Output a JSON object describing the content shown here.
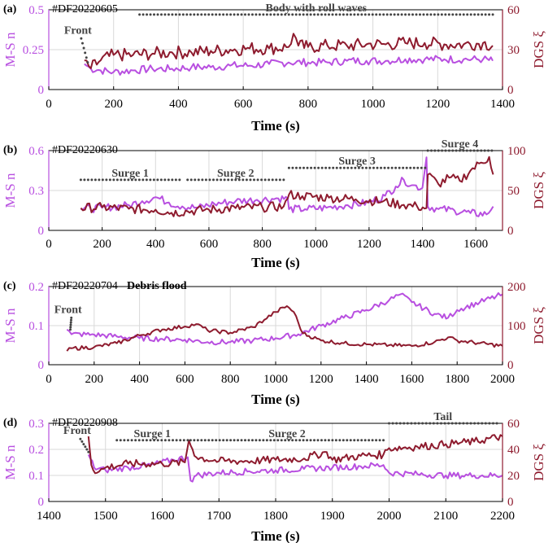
{
  "colors": {
    "msn": "#b84fe0",
    "dgs": "#8e1b2e",
    "dots": "#444444"
  },
  "chart_data": [
    {
      "type": "line",
      "panel": "(a)",
      "event_id": "#DF20220605",
      "xlabel": "Time (s)",
      "ylabel_left": "M-S n",
      "ylabel_right": "DGS ξ",
      "xlim": [
        0,
        1400
      ],
      "xticks": [
        0,
        200,
        400,
        600,
        800,
        1000,
        1200,
        1400
      ],
      "ylim_left": [
        0,
        0.5
      ],
      "yticks_left": [
        "0",
        "0.25",
        "0.5"
      ],
      "yticks_left_values": [
        0,
        0.25,
        0.5
      ],
      "ylim_right": [
        0,
        60
      ],
      "yticks_right": [
        "0",
        "30",
        "60"
      ],
      "yticks_right_values": [
        0,
        30,
        60
      ],
      "annotations": [
        {
          "text": "Front",
          "at": [
            90,
            0.32
          ],
          "arrow_to": [
            120,
            0.17
          ]
        },
        {
          "text": "Body with roll waves",
          "x_from": 280,
          "x_to": 1370,
          "y": 0.47
        }
      ],
      "series": [
        {
          "name": "M-S n",
          "axis": "left",
          "x": [
            110,
            130,
            160,
            200,
            260,
            320,
            380,
            440,
            500,
            560,
            620,
            680,
            740,
            800,
            860,
            920,
            980,
            1040,
            1100,
            1160,
            1220,
            1280,
            1340,
            1370
          ],
          "values": [
            0.16,
            0.13,
            0.12,
            0.11,
            0.12,
            0.13,
            0.13,
            0.14,
            0.14,
            0.15,
            0.15,
            0.16,
            0.17,
            0.17,
            0.17,
            0.18,
            0.18,
            0.18,
            0.19,
            0.19,
            0.19,
            0.19,
            0.19,
            0.18
          ],
          "jitter": 0.025
        },
        {
          "name": "DGS ξ",
          "axis": "right",
          "x": [
            110,
            130,
            160,
            200,
            260,
            320,
            380,
            440,
            500,
            560,
            620,
            680,
            740,
            755,
            770,
            800,
            860,
            920,
            980,
            1040,
            1100,
            1160,
            1220,
            1280,
            1340,
            1370
          ],
          "values": [
            22,
            16,
            22,
            26,
            26,
            27,
            28,
            28,
            29,
            30,
            31,
            31,
            32,
            42,
            33,
            32,
            33,
            33,
            34,
            34,
            35,
            35,
            34,
            34,
            35,
            33
          ],
          "jitter": 5
        }
      ]
    },
    {
      "type": "line",
      "panel": "(b)",
      "event_id": "#DF20220630",
      "xlabel": "Time (s)",
      "ylabel_left": "M-S n",
      "ylabel_right": "DGS ξ",
      "xlim": [
        0,
        1700
      ],
      "xticks": [
        0,
        200,
        400,
        600,
        800,
        1000,
        1200,
        1400,
        1600
      ],
      "ylim_left": [
        0,
        0.6
      ],
      "yticks_left": [
        "0",
        "0.3",
        "0.6"
      ],
      "yticks_left_values": [
        0,
        0.3,
        0.6
      ],
      "ylim_right": [
        0,
        100
      ],
      "yticks_right": [
        "0",
        "50",
        "100"
      ],
      "yticks_right_values": [
        0,
        50,
        100
      ],
      "annotations": [
        {
          "text": "Surge 1",
          "x_from": 120,
          "x_to": 490,
          "y": 0.38
        },
        {
          "text": "Surge 2",
          "x_from": 520,
          "x_to": 880,
          "y": 0.38
        },
        {
          "text": "Surge 3",
          "x_from": 900,
          "x_to": 1410,
          "y": 0.47
        },
        {
          "text": "Surge 4",
          "x_from": 1420,
          "x_to": 1660,
          "y": 0.6
        }
      ],
      "series": [
        {
          "name": "M-S n",
          "axis": "left",
          "x": [
            120,
            200,
            300,
            350,
            400,
            450,
            500,
            560,
            620,
            700,
            780,
            860,
            895,
            900,
            960,
            1040,
            1120,
            1200,
            1260,
            1300,
            1330,
            1360,
            1400,
            1415,
            1420,
            1460,
            1520,
            1580,
            1640,
            1665
          ],
          "values": [
            0.16,
            0.17,
            0.19,
            0.22,
            0.25,
            0.21,
            0.18,
            0.17,
            0.2,
            0.22,
            0.23,
            0.24,
            0.24,
            0.16,
            0.16,
            0.17,
            0.19,
            0.21,
            0.26,
            0.33,
            0.38,
            0.34,
            0.32,
            0.55,
            0.18,
            0.16,
            0.15,
            0.13,
            0.12,
            0.18
          ],
          "jitter": 0.03
        },
        {
          "name": "DGS ξ",
          "axis": "right",
          "x": [
            120,
            200,
            300,
            400,
            460,
            520,
            600,
            700,
            800,
            880,
            895,
            900,
            950,
            1050,
            1150,
            1250,
            1330,
            1380,
            1415,
            1420,
            1460,
            1500,
            1540,
            1580,
            1620,
            1650,
            1665
          ],
          "values": [
            28,
            29,
            27,
            26,
            22,
            24,
            26,
            28,
            29,
            30,
            40,
            45,
            43,
            41,
            39,
            36,
            32,
            30,
            28,
            70,
            58,
            66,
            62,
            75,
            85,
            92,
            70
          ],
          "jitter": 6
        }
      ]
    },
    {
      "type": "line",
      "panel": "(c)",
      "event_id": "#DF20220704",
      "title": "Debris flood",
      "xlabel": "Time (s)",
      "ylabel_left": "M-S n",
      "ylabel_right": "DGS ξ",
      "xlim": [
        0,
        2000
      ],
      "xticks": [
        0,
        200,
        400,
        600,
        800,
        1000,
        1200,
        1400,
        1600,
        1800,
        2000
      ],
      "ylim_left": [
        0,
        0.2
      ],
      "yticks_left": [
        "0",
        "0.1",
        "0.2"
      ],
      "yticks_left_values": [
        0,
        0.1,
        0.2
      ],
      "ylim_right": [
        0,
        200
      ],
      "yticks_right": [
        "0",
        "100",
        "200"
      ],
      "yticks_right_values": [
        0,
        100,
        200
      ],
      "annotations": [
        {
          "text": "Front",
          "at": [
            85,
            0.12
          ],
          "arrow_to": [
            95,
            0.09
          ]
        }
      ],
      "series": [
        {
          "name": "M-S n",
          "axis": "left",
          "x": [
            80,
            100,
            200,
            300,
            400,
            500,
            600,
            700,
            800,
            900,
            1000,
            1100,
            1200,
            1300,
            1400,
            1500,
            1550,
            1600,
            1700,
            1760,
            1800,
            1900,
            2000
          ],
          "values": [
            0.09,
            0.078,
            0.077,
            0.072,
            0.068,
            0.066,
            0.064,
            0.058,
            0.058,
            0.062,
            0.068,
            0.078,
            0.1,
            0.12,
            0.14,
            0.165,
            0.18,
            0.16,
            0.13,
            0.12,
            0.14,
            0.16,
            0.18
          ],
          "jitter": 0.007
        },
        {
          "name": "DGS ξ",
          "axis": "right",
          "x": [
            80,
            100,
            200,
            300,
            400,
            500,
            600,
            650,
            700,
            800,
            900,
            950,
            1000,
            1050,
            1080,
            1120,
            1200,
            1300,
            1400,
            1500,
            1600,
            1700,
            1760,
            1800,
            1900,
            2000
          ],
          "values": [
            35,
            42,
            45,
            55,
            75,
            90,
            98,
            104,
            88,
            82,
            96,
            115,
            135,
            150,
            135,
            80,
            62,
            55,
            52,
            50,
            48,
            58,
            70,
            62,
            55,
            48
          ],
          "jitter": 5
        }
      ]
    },
    {
      "type": "line",
      "panel": "(d)",
      "event_id": "#DF20220908",
      "xlabel": "Time (s)",
      "ylabel_left": "M-S n",
      "ylabel_right": "DGS ξ",
      "xlim": [
        1400,
        2200
      ],
      "xticks": [
        1400,
        1500,
        1600,
        1700,
        1800,
        1900,
        2000,
        2100,
        2200
      ],
      "ylim_left": [
        0,
        0.3
      ],
      "yticks_left": [
        "0",
        "0.1",
        "0.2",
        "0.3"
      ],
      "yticks_left_values": [
        0,
        0.1,
        0.2,
        0.3
      ],
      "ylim_right": [
        0,
        60
      ],
      "yticks_right": [
        "0",
        "20",
        "40",
        "60"
      ],
      "yticks_right_values": [
        0,
        20,
        40,
        60
      ],
      "annotations": [
        {
          "text": "Front",
          "at": [
            1450,
            0.24
          ],
          "arrow_to": [
            1470,
            0.19
          ]
        },
        {
          "text": "Surge 1",
          "x_from": 1520,
          "x_to": 1645,
          "y": 0.235
        },
        {
          "text": "Surge 2",
          "x_from": 1650,
          "x_to": 1990,
          "y": 0.235
        },
        {
          "text": "Tail",
          "x_from": 2000,
          "x_to": 2190,
          "y": 0.3
        }
      ],
      "series": [
        {
          "name": "M-S n",
          "axis": "left",
          "x": [
            1470,
            1480,
            1500,
            1540,
            1580,
            1620,
            1645,
            1650,
            1660,
            1700,
            1750,
            1800,
            1850,
            1900,
            1950,
            1990,
            2000,
            2050,
            2100,
            2150,
            2200
          ],
          "values": [
            0.18,
            0.13,
            0.12,
            0.13,
            0.14,
            0.16,
            0.17,
            0.08,
            0.1,
            0.11,
            0.115,
            0.12,
            0.125,
            0.13,
            0.135,
            0.14,
            0.11,
            0.105,
            0.1,
            0.1,
            0.1
          ],
          "jitter": 0.012
        },
        {
          "name": "DGS ξ",
          "axis": "right",
          "x": [
            1470,
            1475,
            1485,
            1500,
            1540,
            1600,
            1640,
            1647,
            1660,
            1700,
            1750,
            1800,
            1850,
            1890,
            1900,
            1950,
            1990,
            2000,
            2050,
            2100,
            2150,
            2200
          ],
          "values": [
            50,
            28,
            22,
            26,
            29,
            29,
            30,
            47,
            34,
            31,
            31,
            32,
            33,
            38,
            32,
            35,
            36,
            41,
            42,
            44,
            46,
            50
          ],
          "jitter": 3
        }
      ]
    }
  ]
}
